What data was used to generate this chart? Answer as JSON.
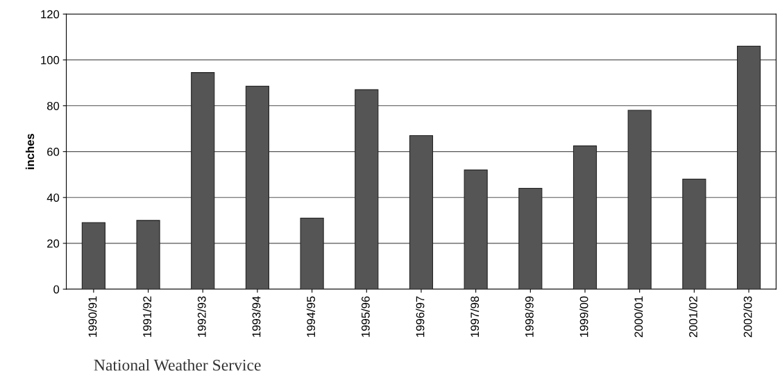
{
  "chart_data": {
    "type": "bar",
    "ylabel": "inches",
    "categories": [
      "1990/91",
      "1991/92",
      "1992/93",
      "1993/94",
      "1994/95",
      "1995/96",
      "1996/97",
      "1997/98",
      "1998/99",
      "1999/00",
      "2000/01",
      "2001/02",
      "2002/03"
    ],
    "values": [
      29,
      30,
      94.5,
      88.5,
      31,
      87,
      67,
      52,
      44,
      62.5,
      78,
      48,
      106
    ],
    "color": "#555555",
    "ylim": [
      0,
      120
    ],
    "yticks": [
      0,
      20,
      40,
      60,
      80,
      100,
      120
    ],
    "grid": "y",
    "legend": false,
    "annotations": [
      "National Weather Service"
    ]
  }
}
